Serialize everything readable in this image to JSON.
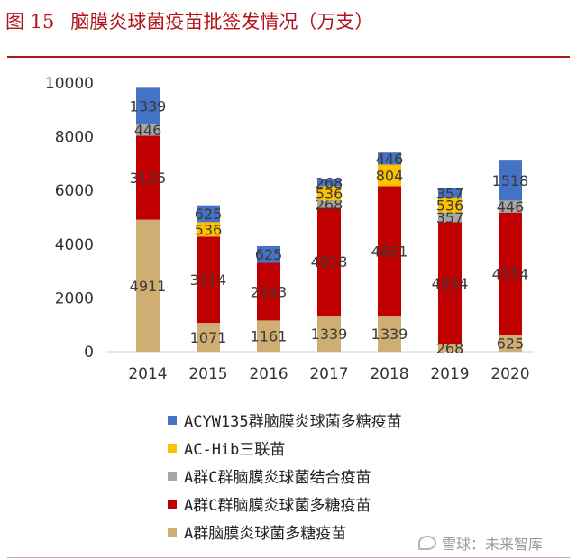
{
  "figure": {
    "number": "图 15",
    "title": "脑膜炎球菌疫苗批签发情况（万支）"
  },
  "watermark": "雪球：未来智库",
  "chart_data": {
    "type": "bar",
    "stacked": true,
    "categories": [
      "2014",
      "2015",
      "2016",
      "2017",
      "2018",
      "2019",
      "2020"
    ],
    "ylim": [
      0,
      10000
    ],
    "yticks": [
      "0",
      "2000",
      "4000",
      "6000",
      "8000",
      "10000"
    ],
    "grid": false,
    "legend_placement": "bottom",
    "series": [
      {
        "name": "A群脑膜炎球菌多糖疫苗",
        "color": "#cfae74",
        "values": [
          4911,
          1071,
          1161,
          1339,
          1339,
          268,
          625
        ]
      },
      {
        "name": "A群C群脑膜炎球菌多糖疫苗",
        "color": "#c00000",
        "values": [
          3125,
          3214,
          2143,
          4018,
          4821,
          4554,
          4554
        ]
      },
      {
        "name": "A群C群脑膜炎球菌结合疫苗",
        "color": "#a6a6a6",
        "values": [
          446,
          0,
          0,
          268,
          0,
          357,
          446
        ]
      },
      {
        "name": "AC-Hib三联苗",
        "color": "#ffc000",
        "values": [
          0,
          536,
          0,
          536,
          804,
          536,
          0
        ]
      },
      {
        "name": "ACYW135群脑膜炎球菌多糖疫苗",
        "color": "#4472c4",
        "values": [
          1339,
          625,
          625,
          268,
          446,
          357,
          1518
        ]
      }
    ]
  }
}
